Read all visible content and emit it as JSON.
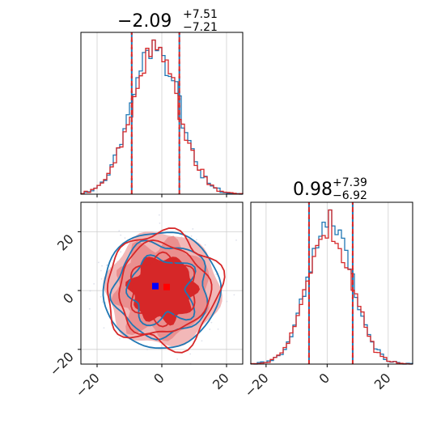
{
  "chart_data": [
    {
      "panel": "marginal-x",
      "type": "step-histogram",
      "title": {
        "median": "−2.09",
        "plus": "+7.51",
        "minus": "−7.21"
      },
      "xlim": [
        -25,
        25
      ],
      "quantiles": [
        -9.3,
        5.42
      ],
      "grid": true,
      "series": [
        {
          "color": "#1f77b4"
        },
        {
          "color": "#d62728"
        }
      ]
    },
    {
      "panel": "joint",
      "type": "contour-2d",
      "xlim": [
        -25,
        25
      ],
      "ylim": [
        -25,
        30
      ],
      "xticks": [
        "−20",
        "0",
        "20"
      ],
      "yticks": [
        "−20",
        "0",
        "20"
      ],
      "grid": true,
      "series": [
        {
          "color": "#1f77b4",
          "center": [
            -2,
            1.5
          ]
        },
        {
          "color": "#d62728",
          "center": [
            1.5,
            1.2
          ],
          "filled": true
        }
      ]
    },
    {
      "panel": "marginal-y",
      "type": "step-histogram",
      "title": {
        "median": "0.98",
        "plus": "+7.39",
        "minus": "−6.92"
      },
      "xlim": [
        -25,
        28
      ],
      "xticks": [
        "−20",
        "0",
        "20"
      ],
      "quantiles": [
        -5.94,
        8.37
      ],
      "grid": true,
      "series": [
        {
          "color": "#1f77b4"
        },
        {
          "color": "#d62728"
        }
      ]
    }
  ]
}
